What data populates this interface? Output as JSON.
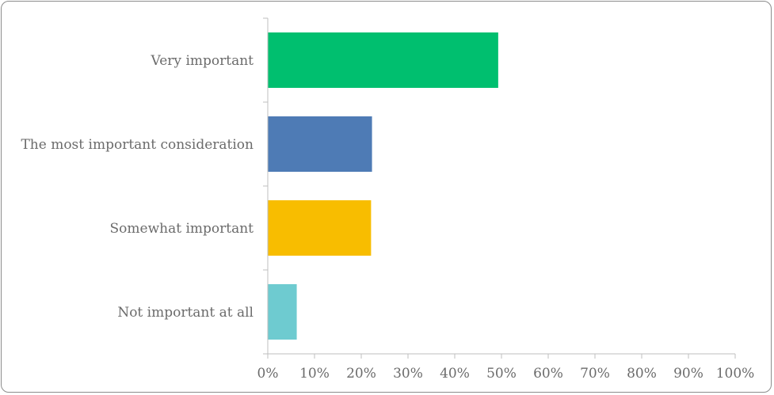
{
  "chart_data": {
    "type": "bar",
    "orientation": "horizontal",
    "categories": [
      "Very important",
      "The most important consideration",
      "Somewhat important",
      "Not important at all"
    ],
    "values": [
      49.3,
      22.3,
      22.1,
      6.2
    ],
    "colors": [
      "#00bf6f",
      "#4e7bb5",
      "#f8bd00",
      "#6ecbd0"
    ],
    "xlim": [
      0,
      100
    ],
    "xticks": [
      "0%",
      "10%",
      "20%",
      "30%",
      "40%",
      "50%",
      "60%",
      "70%",
      "80%",
      "90%",
      "100%"
    ],
    "grid": false,
    "title": "",
    "xlabel": "",
    "ylabel": ""
  }
}
